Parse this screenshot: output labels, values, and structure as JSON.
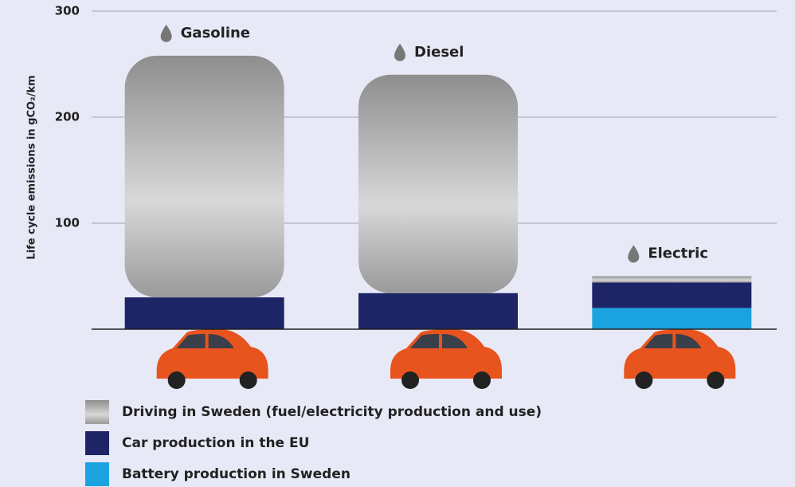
{
  "chart_data": {
    "type": "stacked_bar",
    "y_label": "Life cycle emissions in gCO₂/km",
    "categories": [
      "Gasoline",
      "Diesel",
      "Electric"
    ],
    "series": [
      {
        "name": "Battery production in Sweden",
        "color": "#1ba3e0",
        "values": [
          0,
          0,
          20
        ]
      },
      {
        "name": "Car production in the EU",
        "color": "#1e2566",
        "values": [
          30,
          34,
          24
        ]
      },
      {
        "name": "Driving in Sweden (fuel/electricity production and use)",
        "color": "#9a9a9a",
        "values": [
          228,
          206,
          6
        ]
      }
    ],
    "legend_order": [
      2,
      1,
      0
    ],
    "ylim": [
      0,
      300
    ],
    "yticks": [
      100,
      200,
      300
    ],
    "grid": true
  }
}
